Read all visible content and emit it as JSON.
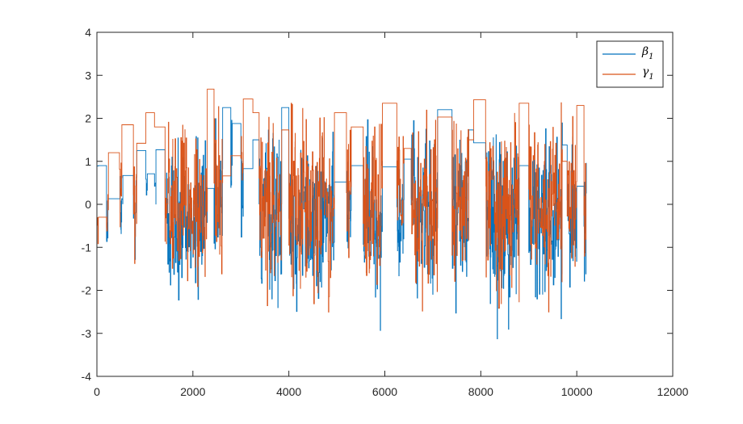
{
  "chart_data": {
    "type": "line",
    "title": "",
    "xlabel": "",
    "ylabel": "",
    "xlim": [
      0,
      12000
    ],
    "ylim": [
      -4,
      4
    ],
    "x_ticks": [
      "0",
      "2000",
      "4000",
      "6000",
      "8000",
      "10000",
      "12000"
    ],
    "y_ticks": [
      "-4",
      "-3",
      "-2",
      "-1",
      "0",
      "1",
      "2",
      "3",
      "4"
    ],
    "grid": false,
    "legend_placement": "top-right",
    "n_samples": 10200,
    "series": [
      {
        "name": "β",
        "name_subscript": "1",
        "color": "#0072BD",
        "description": "noisy piecewise signal with step plateaus",
        "segments": [
          {
            "x": [
              0,
              30
            ],
            "kind": "flat",
            "level": 0.89
          },
          {
            "x": [
              30,
              200
            ],
            "kind": "flat",
            "level": 0.9
          },
          {
            "x": [
              200,
              230
            ],
            "kind": "noise",
            "center": -0.5,
            "amp": 1.1
          },
          {
            "x": [
              230,
              480
            ],
            "kind": "flat",
            "level": 0.13
          },
          {
            "x": [
              480,
              540
            ],
            "kind": "noise",
            "center": -0.3,
            "amp": 1.2
          },
          {
            "x": [
              540,
              760
            ],
            "kind": "flat",
            "level": 0.67
          },
          {
            "x": [
              760,
              830
            ],
            "kind": "noise",
            "center": -0.2,
            "amp": 1.4
          },
          {
            "x": [
              830,
              1020
            ],
            "kind": "flat",
            "level": 1.25
          },
          {
            "x": [
              1020,
              1050
            ],
            "kind": "noise",
            "center": 0.3,
            "amp": 0.5
          },
          {
            "x": [
              1050,
              1200
            ],
            "kind": "flat",
            "level": 0.71
          },
          {
            "x": [
              1200,
              1230
            ],
            "kind": "noise",
            "center": 0.4,
            "amp": 0.5
          },
          {
            "x": [
              1230,
              1420
            ],
            "kind": "flat",
            "level": 1.27
          },
          {
            "x": [
              1420,
              2300
            ],
            "kind": "noise",
            "center": -0.3,
            "amp": 1.8
          },
          {
            "x": [
              2300,
              2440
            ],
            "kind": "flat",
            "level": 0.37
          },
          {
            "x": [
              2440,
              2620
            ],
            "kind": "noise",
            "center": 0.0,
            "amp": 1.6
          },
          {
            "x": [
              2620,
              2790
            ],
            "kind": "flat",
            "level": 2.25
          },
          {
            "x": [
              2790,
              2820
            ],
            "kind": "noise",
            "center": 0.8,
            "amp": 1.0
          },
          {
            "x": [
              2820,
              3000
            ],
            "kind": "flat",
            "level": 1.88
          },
          {
            "x": [
              3000,
              3050
            ],
            "kind": "noise",
            "center": 0.0,
            "amp": 1.5
          },
          {
            "x": [
              3050,
              3250
            ],
            "kind": "flat",
            "level": 0.83
          },
          {
            "x": [
              3250,
              3380
            ],
            "kind": "flat",
            "level": 1.5
          },
          {
            "x": [
              3380,
              3850
            ],
            "kind": "noise",
            "center": -0.2,
            "amp": 1.9
          },
          {
            "x": [
              3850,
              4000
            ],
            "kind": "flat",
            "level": 2.25
          },
          {
            "x": [
              4000,
              4950
            ],
            "kind": "noise",
            "center": -0.3,
            "amp": 2.0
          },
          {
            "x": [
              4950,
              5200
            ],
            "kind": "flat",
            "level": 0.52
          },
          {
            "x": [
              5200,
              5300
            ],
            "kind": "noise",
            "center": 0.0,
            "amp": 1.2
          },
          {
            "x": [
              5300,
              5550
            ],
            "kind": "flat",
            "level": 0.9
          },
          {
            "x": [
              5550,
              5950
            ],
            "kind": "noise",
            "center": -0.4,
            "amp": 1.9
          },
          {
            "x": [
              5950,
              6250
            ],
            "kind": "flat",
            "level": 0.87
          },
          {
            "x": [
              6250,
              6400
            ],
            "kind": "noise",
            "center": -0.3,
            "amp": 1.7
          },
          {
            "x": [
              6400,
              6550
            ],
            "kind": "flat",
            "level": 1.05
          },
          {
            "x": [
              6550,
              7100
            ],
            "kind": "noise",
            "center": -0.2,
            "amp": 1.9
          },
          {
            "x": [
              7100,
              7400
            ],
            "kind": "flat",
            "level": 2.2
          },
          {
            "x": [
              7400,
              7750
            ],
            "kind": "noise",
            "center": -0.2,
            "amp": 1.9
          },
          {
            "x": [
              7750,
              7850
            ],
            "kind": "flat",
            "level": 1.73
          },
          {
            "x": [
              7850,
              8100
            ],
            "kind": "flat",
            "level": 1.43
          },
          {
            "x": [
              8100,
              8800
            ],
            "kind": "noise",
            "center": -0.4,
            "amp": 2.2
          },
          {
            "x": [
              8800,
              9000
            ],
            "kind": "flat",
            "level": 0.9
          },
          {
            "x": [
              9000,
              9700
            ],
            "kind": "noise",
            "center": -0.2,
            "amp": 1.9
          },
          {
            "x": [
              9700,
              9800
            ],
            "kind": "flat",
            "level": 1.38
          },
          {
            "x": [
              9800,
              10000
            ],
            "kind": "noise",
            "center": -0.2,
            "amp": 1.8
          },
          {
            "x": [
              10000,
              10150
            ],
            "kind": "flat",
            "level": 0.42
          },
          {
            "x": [
              10150,
              10200
            ],
            "kind": "noise",
            "center": 0.0,
            "amp": 1.8
          }
        ]
      },
      {
        "name": "γ",
        "name_subscript": "1",
        "color": "#D95319",
        "description": "noisy piecewise signal with step plateaus",
        "segments": [
          {
            "x": [
              0,
              30
            ],
            "kind": "noise",
            "center": -0.3,
            "amp": 0.8
          },
          {
            "x": [
              30,
              200
            ],
            "kind": "flat",
            "level": -0.3
          },
          {
            "x": [
              200,
              240
            ],
            "kind": "noise",
            "center": -0.3,
            "amp": 1.0
          },
          {
            "x": [
              240,
              470
            ],
            "kind": "flat",
            "level": 1.2
          },
          {
            "x": [
              470,
              520
            ],
            "kind": "noise",
            "center": 0.2,
            "amp": 0.8
          },
          {
            "x": [
              520,
              760
            ],
            "kind": "flat",
            "level": 1.85
          },
          {
            "x": [
              760,
              830
            ],
            "kind": "noise",
            "center": -0.3,
            "amp": 1.4
          },
          {
            "x": [
              830,
              1020
            ],
            "kind": "flat",
            "level": 1.42
          },
          {
            "x": [
              1020,
              1200
            ],
            "kind": "flat",
            "level": 2.13
          },
          {
            "x": [
              1200,
              1420
            ],
            "kind": "flat",
            "level": 1.8
          },
          {
            "x": [
              1420,
              2300
            ],
            "kind": "noise",
            "center": -0.2,
            "amp": 1.9
          },
          {
            "x": [
              2300,
              2440
            ],
            "kind": "flat",
            "level": 2.68
          },
          {
            "x": [
              2440,
              2620
            ],
            "kind": "noise",
            "center": 0.3,
            "amp": 1.6
          },
          {
            "x": [
              2620,
              2790
            ],
            "kind": "flat",
            "level": 0.66
          },
          {
            "x": [
              2790,
              3000
            ],
            "kind": "flat",
            "level": 1.13
          },
          {
            "x": [
              3000,
              3050
            ],
            "kind": "noise",
            "center": 0.5,
            "amp": 1.4
          },
          {
            "x": [
              3050,
              3250
            ],
            "kind": "flat",
            "level": 2.45
          },
          {
            "x": [
              3250,
              3380
            ],
            "kind": "flat",
            "level": 2.13
          },
          {
            "x": [
              3380,
              3850
            ],
            "kind": "noise",
            "center": 0.0,
            "amp": 1.9
          },
          {
            "x": [
              3850,
              4000
            ],
            "kind": "flat",
            "level": 1.73
          },
          {
            "x": [
              4000,
              4950
            ],
            "kind": "noise",
            "center": -0.1,
            "amp": 2.0
          },
          {
            "x": [
              4950,
              5200
            ],
            "kind": "flat",
            "level": 2.13
          },
          {
            "x": [
              5200,
              5300
            ],
            "kind": "noise",
            "center": 0.2,
            "amp": 1.5
          },
          {
            "x": [
              5300,
              5550
            ],
            "kind": "flat",
            "level": 1.8
          },
          {
            "x": [
              5550,
              5950
            ],
            "kind": "noise",
            "center": -0.1,
            "amp": 1.9
          },
          {
            "x": [
              5950,
              6250
            ],
            "kind": "flat",
            "level": 2.35
          },
          {
            "x": [
              6250,
              6400
            ],
            "kind": "noise",
            "center": 0.0,
            "amp": 1.8
          },
          {
            "x": [
              6400,
              6550
            ],
            "kind": "flat",
            "level": 1.3
          },
          {
            "x": [
              6550,
              7100
            ],
            "kind": "noise",
            "center": 0.0,
            "amp": 1.9
          },
          {
            "x": [
              7100,
              7400
            ],
            "kind": "flat",
            "level": 2.03
          },
          {
            "x": [
              7400,
              7750
            ],
            "kind": "noise",
            "center": 0.1,
            "amp": 1.9
          },
          {
            "x": [
              7750,
              7850
            ],
            "kind": "flat",
            "level": 1.5
          },
          {
            "x": [
              7850,
              8100
            ],
            "kind": "flat",
            "level": 2.43
          },
          {
            "x": [
              8100,
              8800
            ],
            "kind": "noise",
            "center": -0.1,
            "amp": 2.1
          },
          {
            "x": [
              8800,
              9000
            ],
            "kind": "flat",
            "level": 2.35
          },
          {
            "x": [
              9000,
              9700
            ],
            "kind": "noise",
            "center": 0.0,
            "amp": 2.0
          },
          {
            "x": [
              9700,
              9800
            ],
            "kind": "flat",
            "level": 1.0
          },
          {
            "x": [
              9800,
              10000
            ],
            "kind": "noise",
            "center": 0.1,
            "amp": 1.8
          },
          {
            "x": [
              10000,
              10150
            ],
            "kind": "flat",
            "level": 2.3
          },
          {
            "x": [
              10150,
              10200
            ],
            "kind": "noise",
            "center": 0.0,
            "amp": 1.8
          }
        ]
      }
    ]
  }
}
